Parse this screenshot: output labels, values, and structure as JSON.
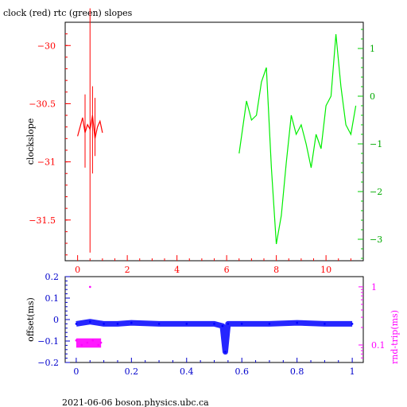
{
  "chart_data": [
    {
      "type": "line",
      "title": "clock (red) rtc (green) slopes",
      "xlabel": "",
      "ylabel": "clockslope",
      "xlim": [
        -0.5,
        11.5
      ],
      "ylim": [
        -31.85,
        -29.8
      ],
      "xticks": [
        "0",
        "2",
        "4",
        "6",
        "8",
        "10"
      ],
      "yticks_left": [
        "-30",
        "-30.5",
        "-31",
        "-31.5"
      ],
      "ylim_right": [
        -3.45,
        1.55
      ],
      "yticks_right": [
        "1",
        "0",
        "-1",
        "-2",
        "-3"
      ],
      "grid": false,
      "colors": {
        "frame": "#000000",
        "clock": "#ff0000",
        "rtc": "#00ee00"
      },
      "series": [
        {
          "name": "clock",
          "axis": "left",
          "x": [
            0,
            0.1,
            0.2,
            0.3,
            0.4,
            0.5,
            0.6,
            0.7,
            0.8,
            0.9,
            1.0
          ],
          "y": [
            -30.78,
            -30.7,
            -30.62,
            -30.75,
            -30.68,
            -30.72,
            -30.6,
            -30.8,
            -30.7,
            -30.65,
            -30.75
          ],
          "spikes": [
            [
              0.3,
              -30.42,
              -31.05
            ],
            [
              0.5,
              -29.68,
              -31.78
            ],
            [
              0.6,
              -30.35,
              -31.1
            ],
            [
              0.7,
              -30.45,
              -30.95
            ]
          ]
        },
        {
          "name": "rtc",
          "axis": "right",
          "x": [
            6.5,
            6.8,
            7.0,
            7.2,
            7.4,
            7.6,
            7.8,
            8.0,
            8.2,
            8.4,
            8.6,
            8.8,
            9.0,
            9.2,
            9.4,
            9.6,
            9.8,
            10.0,
            10.2,
            10.4,
            10.6,
            10.8,
            11.0,
            11.2
          ],
          "y": [
            -1.2,
            -0.1,
            -0.5,
            -0.4,
            0.3,
            0.6,
            -1.5,
            -3.1,
            -2.5,
            -1.4,
            -0.4,
            -0.8,
            -0.6,
            -1.0,
            -1.5,
            -0.8,
            -1.1,
            -0.2,
            0.0,
            1.3,
            0.2,
            -0.6,
            -0.8,
            -0.2
          ]
        }
      ]
    },
    {
      "type": "scatter",
      "title": "",
      "xlabel": "",
      "ylabel": "offset(ms)",
      "ylabel_right": "rnd-trip(ms)",
      "xlim": [
        -0.04,
        1.04
      ],
      "ylim": [
        -0.2,
        0.2
      ],
      "xticks": [
        "0",
        "0.2",
        "0.4",
        "0.6",
        "0.8",
        "1"
      ],
      "yticks_left": [
        "0.2",
        "0.1",
        "0",
        "-0.1",
        "-0.2"
      ],
      "yticks_right": [
        "1",
        "0.1"
      ],
      "yscale_right": "log",
      "ylim_right": [
        0.05,
        1.5
      ],
      "grid": false,
      "colors": {
        "offset": "#0000ff",
        "rnd_trip": "#ff00ff",
        "axis": "#0000cc"
      },
      "series": [
        {
          "name": "offset",
          "axis": "left",
          "x": [
            0,
            0.05,
            0.1,
            0.15,
            0.2,
            0.3,
            0.4,
            0.5,
            0.53,
            0.54,
            0.55,
            0.6,
            0.7,
            0.8,
            0.9,
            1.0
          ],
          "y": [
            -0.02,
            -0.01,
            -0.02,
            -0.02,
            -0.015,
            -0.02,
            -0.02,
            -0.02,
            -0.03,
            -0.15,
            -0.02,
            -0.02,
            -0.02,
            -0.015,
            -0.02,
            -0.02
          ]
        },
        {
          "name": "rnd-trip",
          "axis": "right",
          "x": [
            0,
            0.02,
            0.04,
            0.05,
            0.06,
            0.08,
            0.09
          ],
          "y": [
            0.12,
            0.1,
            0.11,
            1.0,
            0.12,
            0.1,
            0.11
          ]
        }
      ]
    }
  ],
  "footer": "2021-06-06  boson.physics.ubc.ca"
}
